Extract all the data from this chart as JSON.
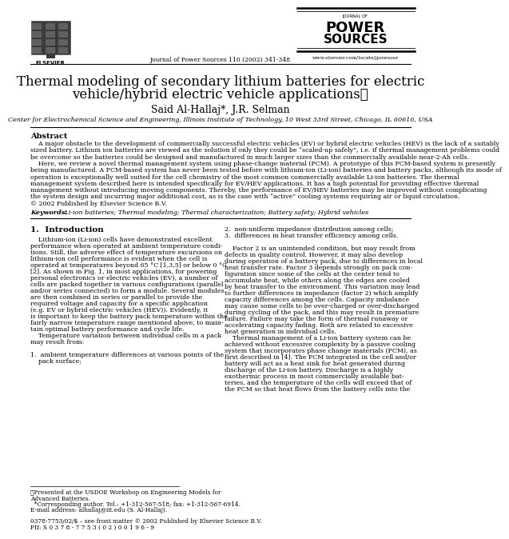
{
  "bg_color": "#ffffff",
  "journal_header": "Journal of Power Sources 110 (2002) 341-348",
  "journal_url": "www.elsevier.com/locate/jpowsour",
  "title_line1": "Thermal modeling of secondary lithium batteries for electric",
  "title_line2": "vehicle/hybrid electric vehicle applications☆",
  "authors": "Said Al-Hallaj*, J.R. Selman",
  "affiliation": "Center for Electrochemical Science and Engineering, Illinois Institute of Technology, 10 West 33rd Street, Chicago, IL 60616, USA",
  "abstract_title": "Abstract",
  "abstract_lines": [
    "    A major obstacle to the development of commercially successful electric vehicles (EV) or hybrid electric vehicles (HEV) is the lack of a suitably",
    "sized battery. Lithium ion batteries are viewed as the solution if only they could be “scaled-up safely”, i.e. if thermal management problems could",
    "be overcome so the batteries could be designed and manufactured in much larger sizes than the commercially available near-2-Ah cells.",
    "    Here, we review a novel thermal management system using phase-change material (PCM). A prototype of this PCM-based system is presently",
    "being manufactured. A PCM-based system has never been tested before with lithium-ion (Li-ion) batteries and battery packs, although its mode of",
    "operation is exceptionally well suited for the cell chemistry of the most common commercially available Li-ion batteries. The thermal",
    "management system described here is intended specifically for EV/HEV applications. It has a high potential for providing effective thermal",
    "management without introducing moving components. Thereby, the performance of EV/HEV batteries may be improved without complicating",
    "the system design and incurring major additional cost, as is the case with “active” cooling systems requiring air or liquid circulation.",
    "© 2002 Published by Elsevier Science B.V."
  ],
  "keywords_label": "Keywords:",
  "keywords_text": " Li-ion batteries; Thermal modeling; Thermal characterization; Battery safety; Hybrid vehicles",
  "section1_title": "1.  Introduction",
  "col1_lines": [
    "    Lithium-ion (Li-ion) cells have demonstrated excellent",
    "performance when operated at ambient temperature condi-",
    "tions. Still, the adverse effect of temperature excursions on",
    "lithium-ion cell performance is evident when the cell is",
    "operated at temperatures beyond 65 °C [1,3,5] or below 0 °C",
    "[2]. As shown in Fig. 1, in most applications, for powering",
    "personal electronics or electric vehicles (EV), a number of",
    "cells are packed together in various configurations (parallel",
    "and/or series connected) to form a module. Several modules",
    "are then combined in series or parallel to provide the",
    "required voltage and capacity for a specific application",
    "(e.g. EV or hybrid electric vehicles (HEV)). Evidently, it",
    "is important to keep the battery pack temperature within the",
    "fairly narrow temperature range mentioned above, to main-",
    "tain optimal battery performance and cycle life.",
    "    Temperature variation between individual cells in a pack",
    "may result from:",
    "",
    "1.  ambient temperature differences at various points of the",
    "    pack surface;"
  ],
  "col2_lines": [
    "2.  non-uniform impedance distribution among cells;",
    "3.  differences in heat transfer efficiency among cells.",
    "",
    "    Factor 2 is an unintended condition, but may result from",
    "defects in quality control. However, it may also develop",
    "during operation of a battery pack, due to differences in local",
    "heat transfer rate. Factor 3 depends strongly on pack con-",
    "figuration since some of the cells at the center tend to",
    "accumulate heat, while others along the edges are cooled",
    "by heat transfer to the environment. This variation may lead",
    "to further differences in impedance (factor 2) which amplify",
    "capacity differences among the cells. Capacity imbalance",
    "may cause some cells to be over-charged or over-discharged",
    "during cycling of the pack, and this may result in premature",
    "failure. Failure may take the form of thermal runaway or",
    "accelerating capacity fading. Both are related to excessive",
    "heat generation in individual cells.",
    "    Thermal management of a Li-ion battery system can be",
    "achieved without excessive complexity by a passive cooling",
    "system that incorporates phase change materials (PCM), as",
    "first described in [4]. The PCM integrated in the cell and/or",
    "battery will act as a heat sink for heat generated during",
    "discharge of the Li-ion battery. Discharge is a highly",
    "exothermic process in most commercially available bat-",
    "teries, and the temperature of the cells will exceed that of",
    "the PCM so that heat flows from the battery cells into the"
  ],
  "footnote_lines": [
    "★Presented at the USDOE Workshop on Engineering Models for",
    "Advanced Batteries.",
    "  *Corresponding author. Tel.: +1-312-567-518; fax: +1-312-567-6914.",
    "E-mail address: alhallaj@iit.edu (S. Al-Hallaj)."
  ],
  "copyright_line1": "0378-7753/02/$ – see front matter © 2002 Published by Elsevier Science B.V.",
  "copyright_line2": "PII: S 0 3 7 8 - 7 7 5 3 ( 0 2 ) 0 0 1 9 6 - 9"
}
